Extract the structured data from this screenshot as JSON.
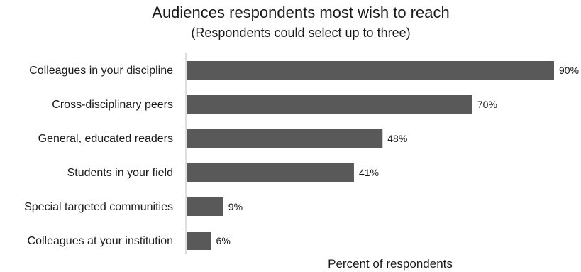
{
  "chart_data": {
    "type": "bar",
    "orientation": "horizontal",
    "title": "Audiences respondents most wish to reach",
    "subtitle": "(Respondents could select up to three)",
    "xlabel": "Percent of respondents",
    "ylabel": "",
    "categories": [
      "Colleagues in your discipline",
      "Cross-disciplinary peers",
      "General, educated readers",
      "Students in your field",
      "Special targeted communities",
      "Colleagues at your institution"
    ],
    "values": [
      90,
      70,
      48,
      41,
      9,
      6
    ],
    "value_labels": [
      "90%",
      "70%",
      "48%",
      "41%",
      "9%",
      "6%"
    ],
    "xlim": [
      0,
      90
    ],
    "grid": false,
    "legend": "none",
    "colors": {
      "bar": "#595959",
      "axis": "#bfbfbf"
    }
  }
}
